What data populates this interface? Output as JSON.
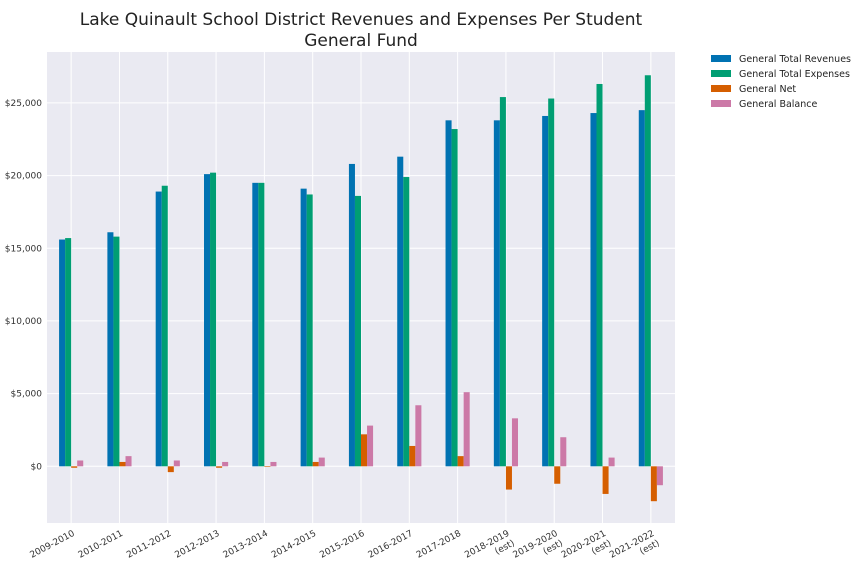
{
  "chart_data": {
    "type": "bar",
    "title": "Lake Quinault School District Revenues and Expenses Per Student",
    "subtitle": "General Fund",
    "xlabel": "",
    "ylabel": "",
    "ylim": [
      -3900,
      28500
    ],
    "yticks": [
      0,
      5000,
      10000,
      15000,
      20000,
      25000
    ],
    "ytick_labels": [
      "$0",
      "$5,000",
      "$10,000",
      "$15,000",
      "$20,000",
      "$25,000"
    ],
    "grid": true,
    "legend_placement": "outside-top-right",
    "categories": [
      "2009-2010",
      "2010-2011",
      "2011-2012",
      "2012-2013",
      "2013-2014",
      "2014-2015",
      "2015-2016",
      "2016-2017",
      "2017-2018",
      "2018-2019\n(est)",
      "2019-2020\n(est)",
      "2020-2021\n(est)",
      "2021-2022\n(est)"
    ],
    "series": [
      {
        "name": "General Total Revenues",
        "color": "#0072b2",
        "values": [
          15600,
          16100,
          18900,
          20100,
          19500,
          19100,
          20800,
          21300,
          23800,
          23800,
          24100,
          24300,
          24500
        ]
      },
      {
        "name": "General Total Expenses",
        "color": "#009e73",
        "values": [
          15700,
          15800,
          19300,
          20200,
          19500,
          18700,
          18600,
          19900,
          23200,
          25400,
          25300,
          26300,
          26900
        ]
      },
      {
        "name": "General Net",
        "color": "#d55e00",
        "values": [
          -100,
          300,
          -400,
          -100,
          0,
          300,
          2200,
          1400,
          700,
          -1600,
          -1200,
          -1900,
          -2400
        ]
      },
      {
        "name": "General Balance",
        "color": "#cc79a7",
        "values": [
          400,
          700,
          400,
          300,
          300,
          600,
          2800,
          4200,
          5100,
          3300,
          2000,
          600,
          -1300
        ]
      }
    ]
  }
}
